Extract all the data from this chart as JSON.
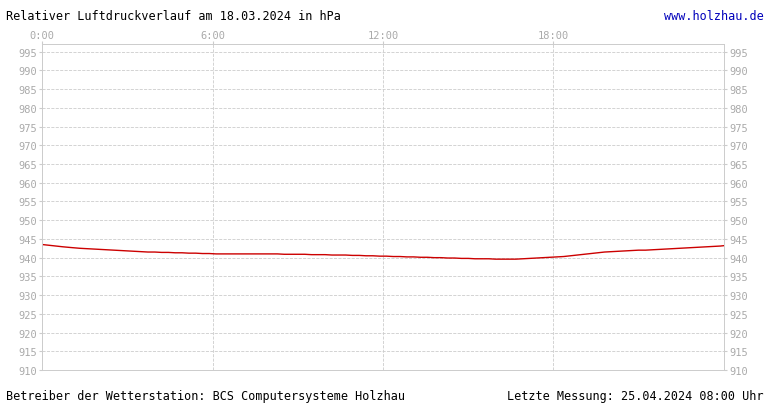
{
  "title_left": "Relativer Luftdruckverlauf am 18.03.2024 in hPa",
  "title_right": "www.holzhau.de",
  "footer_left": "Betreiber der Wetterstation: BCS Computersysteme Holzhau",
  "footer_right": "Letzte Messung: 25.04.2024 08:00 Uhr",
  "ylim": [
    910,
    997
  ],
  "ytick_min": 910,
  "ytick_max": 995,
  "ytick_step": 5,
  "xtick_labels": [
    "0:00",
    "6:00",
    "12:00",
    "18:00"
  ],
  "xtick_positions": [
    0.0,
    0.25,
    0.5,
    0.75
  ],
  "line_color": "#cc0000",
  "background_color": "#ffffff",
  "plot_bg_color": "#ffffff",
  "grid_color": "#cccccc",
  "text_color": "#aaaaaa",
  "title_color": "#000000",
  "url_color": "#0000bb",
  "footer_color": "#000000",
  "pressure_x": [
    0.0,
    0.01,
    0.02,
    0.03,
    0.042,
    0.055,
    0.065,
    0.075,
    0.085,
    0.095,
    0.105,
    0.115,
    0.125,
    0.135,
    0.145,
    0.155,
    0.165,
    0.175,
    0.185,
    0.195,
    0.205,
    0.215,
    0.225,
    0.235,
    0.245,
    0.255,
    0.265,
    0.275,
    0.285,
    0.295,
    0.305,
    0.315,
    0.325,
    0.335,
    0.345,
    0.355,
    0.365,
    0.375,
    0.385,
    0.395,
    0.405,
    0.415,
    0.425,
    0.435,
    0.445,
    0.455,
    0.465,
    0.475,
    0.485,
    0.495,
    0.505,
    0.515,
    0.525,
    0.535,
    0.545,
    0.555,
    0.565,
    0.575,
    0.585,
    0.595,
    0.605,
    0.615,
    0.625,
    0.635,
    0.645,
    0.655,
    0.665,
    0.675,
    0.685,
    0.695,
    0.705,
    0.715,
    0.725,
    0.735,
    0.745,
    0.755,
    0.765,
    0.775,
    0.785,
    0.795,
    0.805,
    0.815,
    0.825,
    0.835,
    0.845,
    0.855,
    0.865,
    0.875,
    0.885,
    0.895,
    0.905,
    0.915,
    0.925,
    0.935,
    0.945,
    0.955,
    0.965,
    0.975,
    0.985,
    0.995,
    1.0
  ],
  "pressure_y": [
    943.5,
    943.3,
    943.1,
    942.9,
    942.7,
    942.5,
    942.4,
    942.3,
    942.2,
    942.1,
    942.0,
    941.9,
    941.8,
    941.7,
    941.6,
    941.5,
    941.5,
    941.4,
    941.4,
    941.3,
    941.3,
    941.2,
    941.2,
    941.1,
    941.1,
    941.0,
    941.0,
    941.0,
    941.0,
    941.0,
    941.0,
    941.0,
    941.0,
    941.0,
    941.0,
    940.9,
    940.9,
    940.9,
    940.9,
    940.8,
    940.8,
    940.8,
    940.7,
    940.7,
    940.7,
    940.6,
    940.6,
    940.5,
    940.5,
    940.4,
    940.4,
    940.3,
    940.3,
    940.2,
    940.2,
    940.1,
    940.1,
    940.0,
    940.0,
    939.9,
    939.9,
    939.8,
    939.8,
    939.7,
    939.7,
    939.7,
    939.6,
    939.6,
    939.6,
    939.6,
    939.7,
    939.8,
    939.9,
    940.0,
    940.1,
    940.2,
    940.3,
    940.5,
    940.7,
    940.9,
    941.1,
    941.3,
    941.5,
    941.6,
    941.7,
    941.8,
    941.9,
    942.0,
    942.0,
    942.1,
    942.2,
    942.3,
    942.4,
    942.5,
    942.6,
    942.7,
    942.8,
    942.9,
    943.0,
    943.1,
    943.2
  ]
}
